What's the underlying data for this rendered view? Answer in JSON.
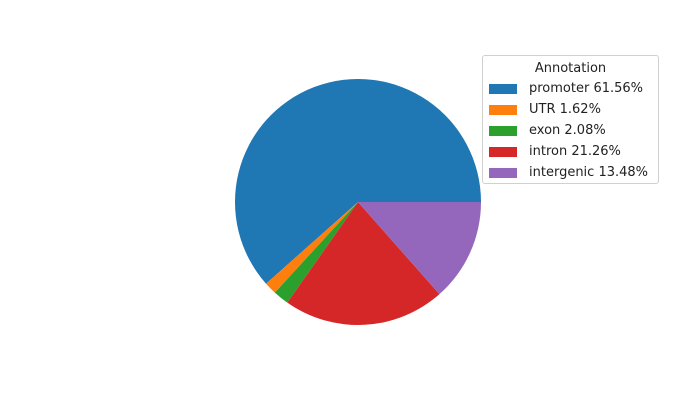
{
  "chart_data": {
    "type": "pie",
    "legend_title": "Annotation",
    "legend_placement": "upper-right",
    "start_angle": 0,
    "direction": "counterclockwise",
    "slices": [
      {
        "label": "promoter 61.56%",
        "category": "promoter",
        "value": 61.56,
        "color": "#1f77b4"
      },
      {
        "label": "UTR 1.62%",
        "category": "UTR",
        "value": 1.62,
        "color": "#ff7f0e"
      },
      {
        "label": "exon 2.08%",
        "category": "exon",
        "value": 2.08,
        "color": "#2ca02c"
      },
      {
        "label": "intron 21.26%",
        "category": "intron",
        "value": 21.26,
        "color": "#d62728"
      },
      {
        "label": "intergenic 13.48%",
        "category": "intergenic",
        "value": 13.48,
        "color": "#9467bd"
      }
    ]
  }
}
